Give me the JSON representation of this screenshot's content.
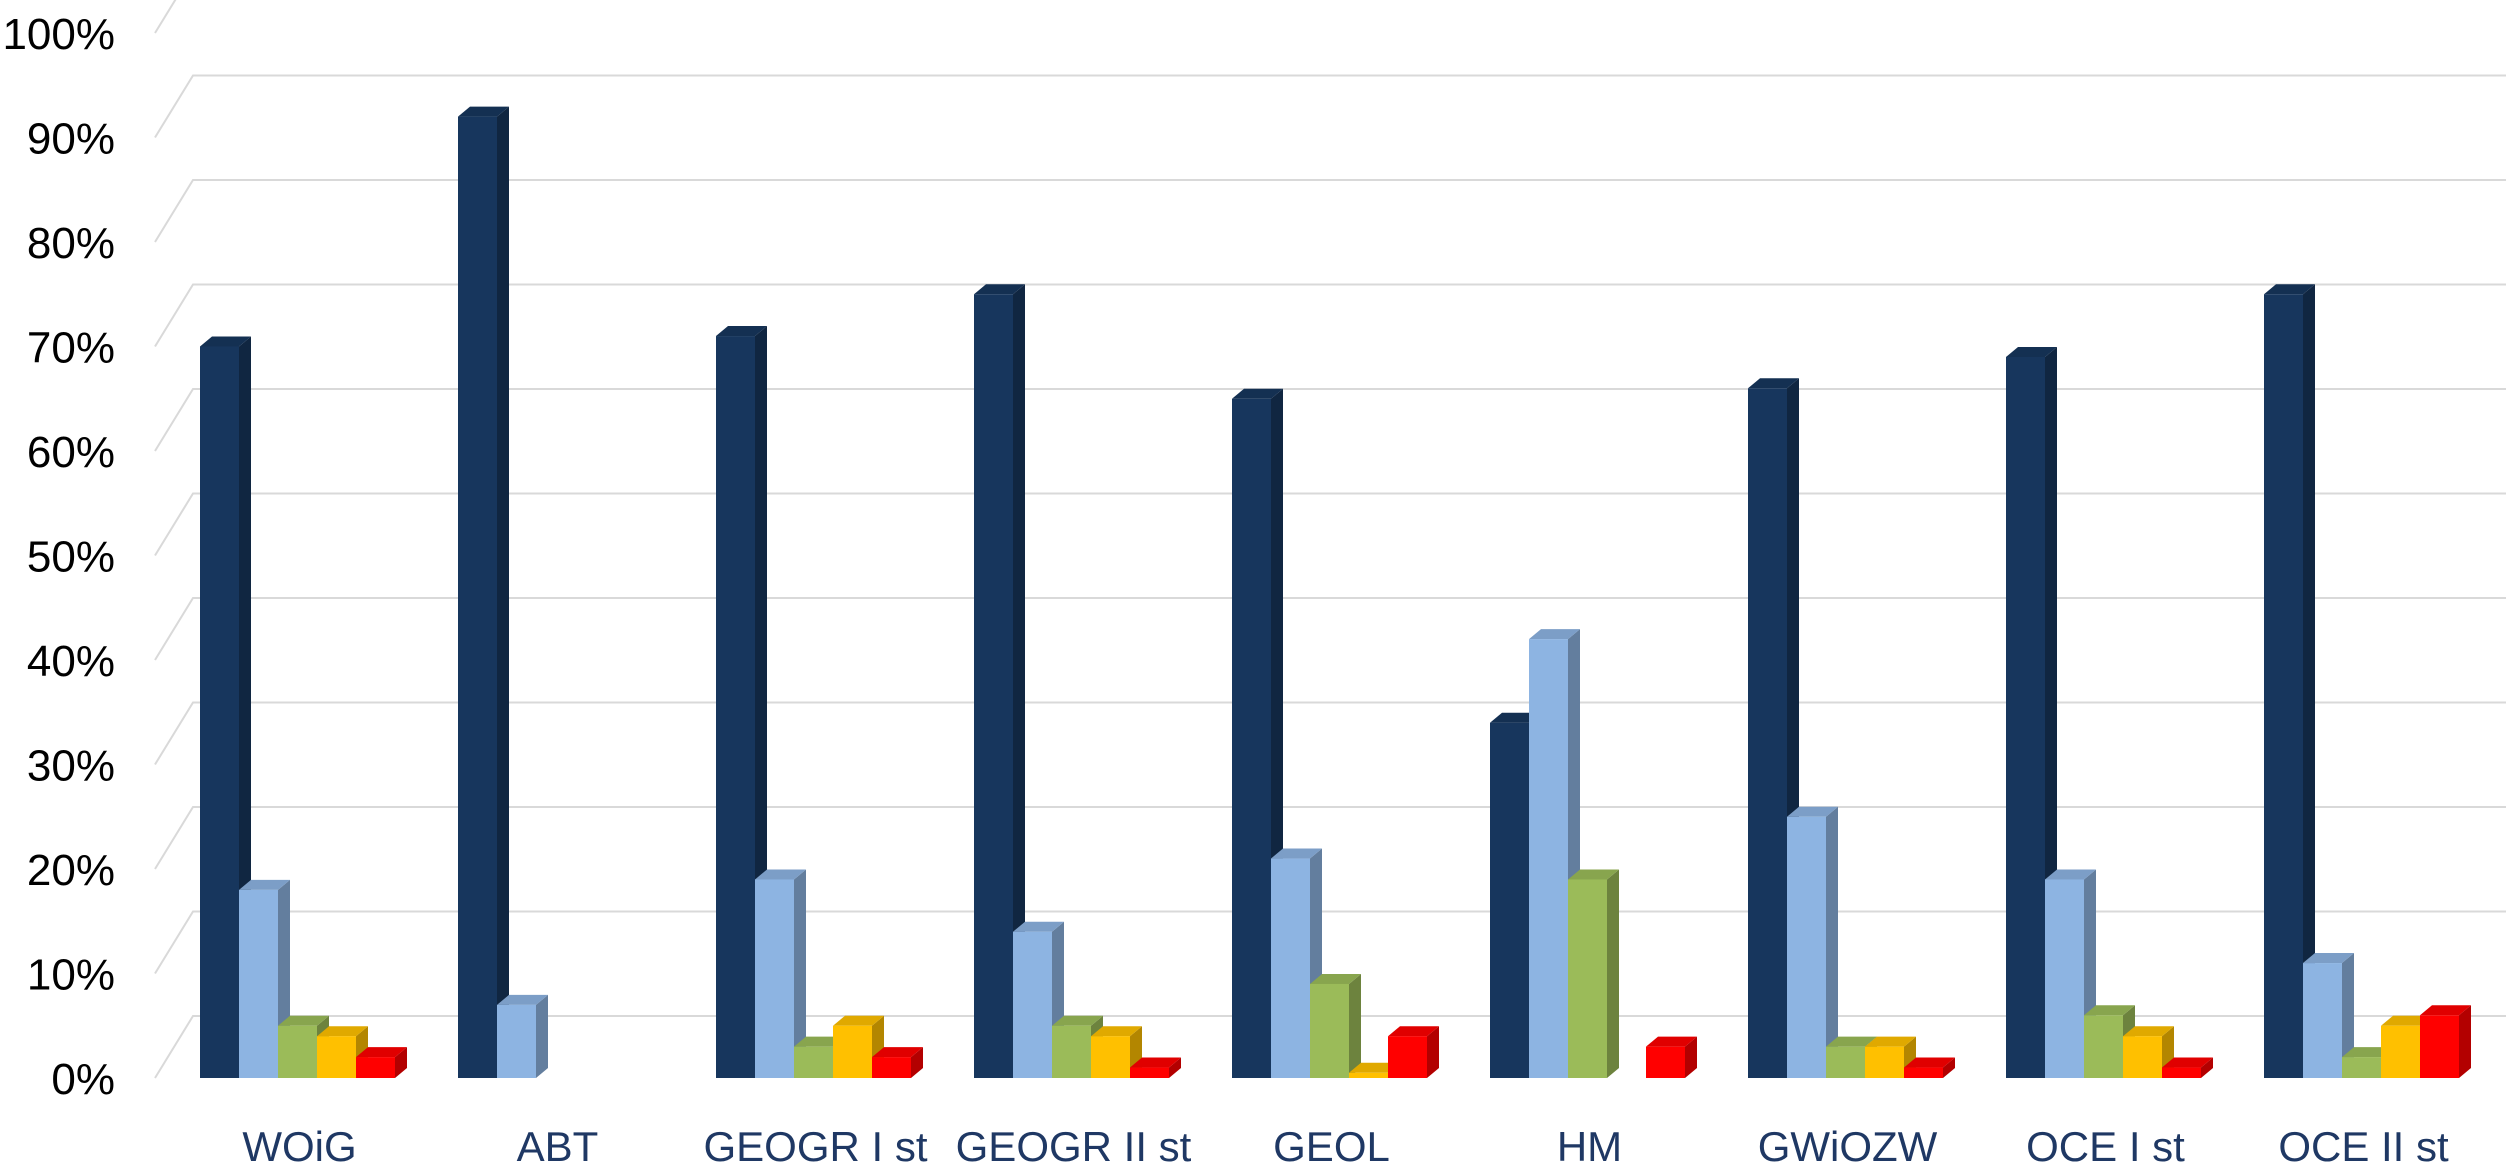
{
  "chart_data": {
    "type": "bar",
    "style": "3d-clustered-column",
    "categories": [
      "WOiG",
      "ABT",
      "GEOGR I st",
      "GEOGR II st",
      "GEOL",
      "HM",
      "GWiOZW",
      "OCE I st",
      "OCE II st"
    ],
    "series": [
      {
        "color": "#17365d",
        "values": [
          70,
          92,
          71,
          75,
          65,
          34,
          66,
          69,
          75
        ]
      },
      {
        "color": "#8db4e2",
        "values": [
          18,
          7,
          19,
          14,
          21,
          42,
          25,
          19,
          11
        ]
      },
      {
        "color": "#9bbb59",
        "values": [
          5,
          0,
          3,
          5,
          9,
          19,
          3,
          6,
          2
        ]
      },
      {
        "color": "#ffc000",
        "values": [
          4,
          0,
          5,
          4,
          0.5,
          0,
          3,
          4,
          5
        ]
      },
      {
        "color": "#ff0000",
        "values": [
          2,
          0,
          2,
          1,
          4,
          3,
          1,
          1,
          6
        ]
      }
    ],
    "ylim": [
      0,
      100
    ],
    "y_ticks": [
      "0%",
      "10%",
      "20%",
      "30%",
      "40%",
      "50%",
      "60%",
      "70%",
      "80%",
      "90%",
      "100%"
    ],
    "grid": true,
    "legend": "none",
    "title": "",
    "xlabel": "",
    "ylabel": ""
  }
}
